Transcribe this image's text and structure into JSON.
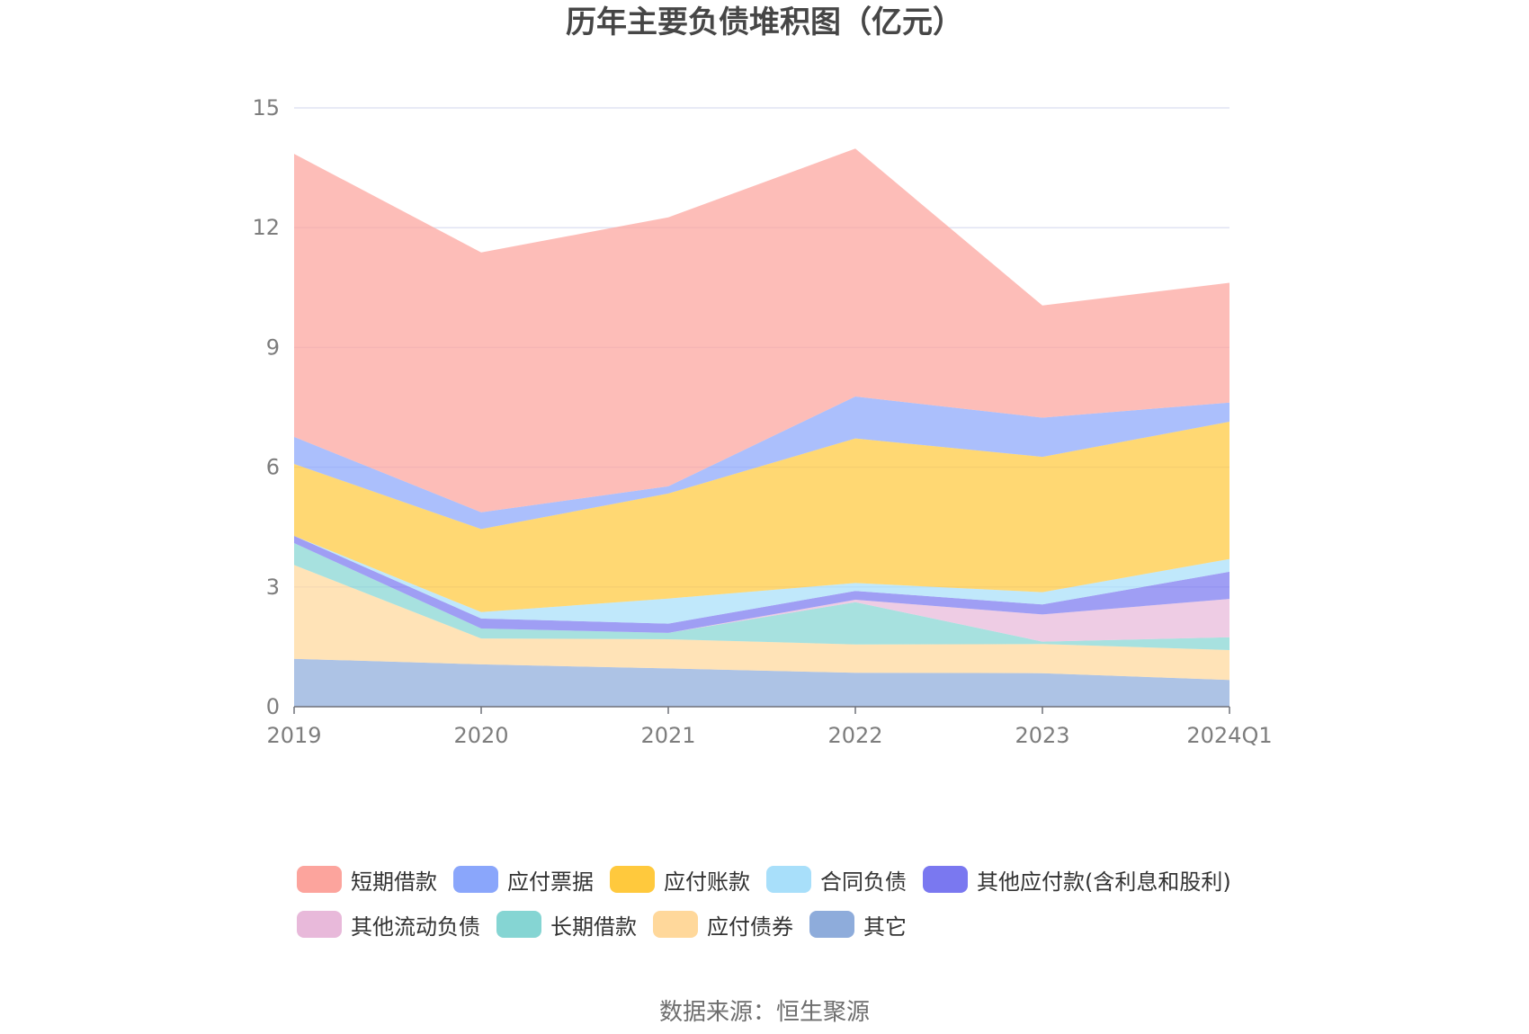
{
  "chart_data": {
    "type": "area",
    "stacked": true,
    "title": "历年主要负债堆积图（亿元）",
    "categories": [
      "2019",
      "2020",
      "2021",
      "2022",
      "2023",
      "2024Q1"
    ],
    "ylim": [
      0,
      15
    ],
    "yticks": [
      0,
      3,
      6,
      9,
      12,
      15
    ],
    "grid": true,
    "legend_position": "bottom",
    "series": [
      {
        "name": "其它",
        "color": "#8eacdb",
        "values": [
          1.2,
          1.06,
          0.96,
          0.85,
          0.84,
          0.67
        ]
      },
      {
        "name": "应付债券",
        "color": "#ffd89b",
        "values": [
          2.35,
          0.65,
          0.73,
          0.71,
          0.73,
          0.75
        ]
      },
      {
        "name": "长期借款",
        "color": "#85d5d3",
        "values": [
          0.55,
          0.25,
          0.16,
          1.06,
          0.06,
          0.32
        ]
      },
      {
        "name": "其他流动负债",
        "color": "#e8b9da",
        "values": [
          0.0,
          0.0,
          0.0,
          0.06,
          0.68,
          0.96
        ]
      },
      {
        "name": "其他应付款(含利息和股利)",
        "color": "#7a78f0",
        "values": [
          0.18,
          0.25,
          0.23,
          0.22,
          0.25,
          0.68
        ]
      },
      {
        "name": "合同负债",
        "color": "#a8dffa",
        "values": [
          0.0,
          0.16,
          0.63,
          0.2,
          0.31,
          0.32
        ]
      },
      {
        "name": "应付账款",
        "color": "#ffc93d",
        "values": [
          1.8,
          2.08,
          2.63,
          3.62,
          3.39,
          3.44
        ]
      },
      {
        "name": "应付票据",
        "color": "#8aa6fb",
        "values": [
          0.68,
          0.42,
          0.18,
          1.05,
          0.98,
          0.48
        ]
      },
      {
        "name": "短期借款",
        "color": "#fca49d",
        "values": [
          7.09,
          6.51,
          6.74,
          6.21,
          2.81,
          3.0
        ]
      }
    ]
  },
  "legend": {
    "rows": [
      [
        {
          "label": "短期借款",
          "color": "#fca49d"
        },
        {
          "label": "应付票据",
          "color": "#8aa6fb"
        },
        {
          "label": "应付账款",
          "color": "#ffc93d"
        },
        {
          "label": "合同负债",
          "color": "#a8dffa"
        },
        {
          "label": "其他应付款(含利息和股利)",
          "color": "#7a78f0"
        }
      ],
      [
        {
          "label": "其他流动负债",
          "color": "#e8b9da"
        },
        {
          "label": "长期借款",
          "color": "#85d5d3"
        },
        {
          "label": "应付债券",
          "color": "#ffd89b"
        },
        {
          "label": "其它",
          "color": "#8eacdb"
        }
      ]
    ]
  },
  "source": "数据来源：恒生聚源"
}
